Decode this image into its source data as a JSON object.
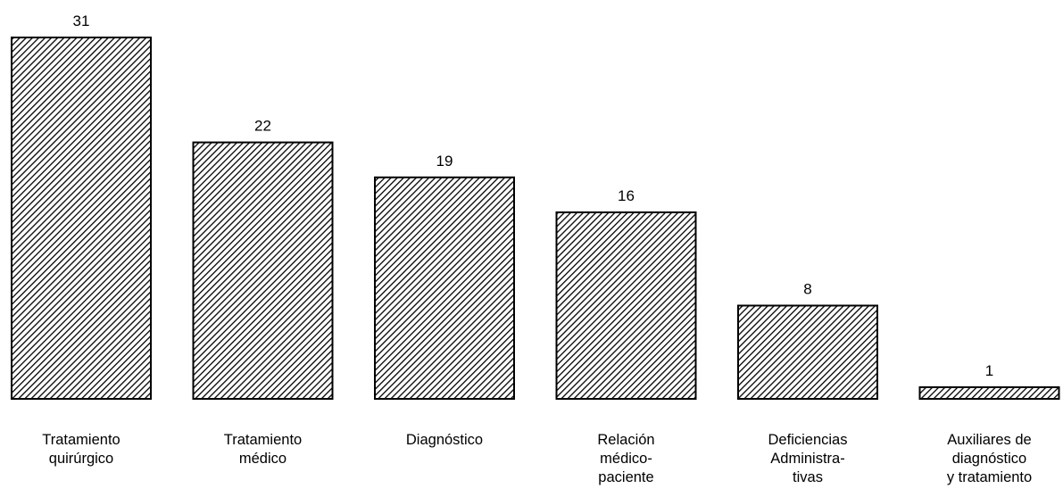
{
  "chart_data": {
    "type": "bar",
    "title": "",
    "xlabel": "",
    "ylabel": "",
    "categories": [
      [
        "Tratamiento",
        "quirúrgico"
      ],
      [
        "Tratamiento",
        "médico"
      ],
      [
        "Diagnóstico"
      ],
      [
        "Relación",
        "médico-",
        "paciente"
      ],
      [
        "Deficiencias",
        "Administra-",
        "tivas"
      ],
      [
        "Auxiliares  de",
        "diagnóstico",
        "y tratamiento"
      ]
    ],
    "values": [
      31,
      22,
      19,
      16,
      8,
      1
    ],
    "value_labels": [
      "31",
      "22",
      "19",
      "16",
      "8",
      "1"
    ],
    "ylim": [
      0,
      31
    ],
    "grid": false,
    "legend": "none",
    "bar_fill": "diagonal-hatch",
    "bar_color": "#000000",
    "background": "#ffffff"
  }
}
